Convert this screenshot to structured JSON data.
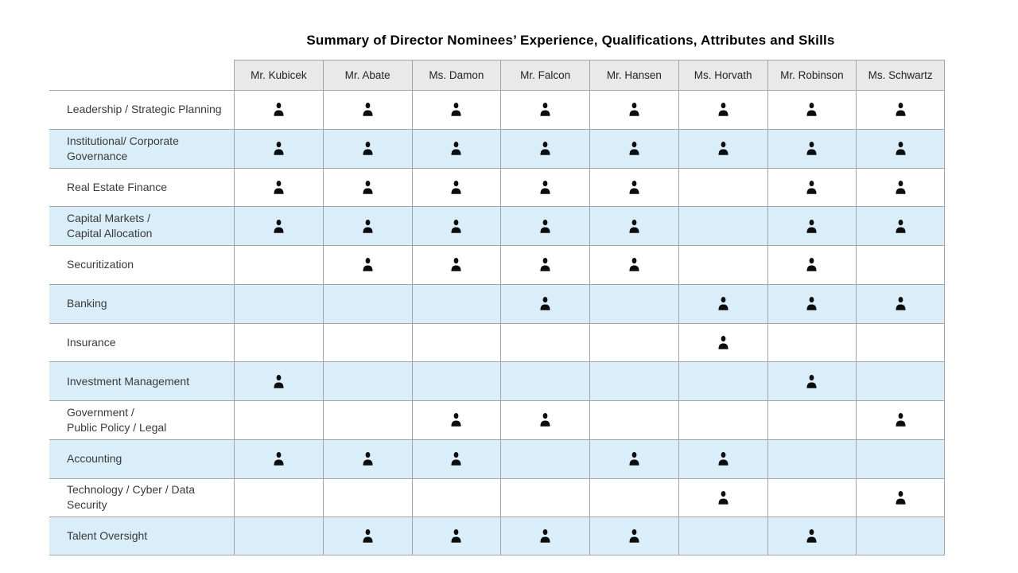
{
  "title": "Summary of Director Nominees’ Experience, Qualifications, Attributes and Skills",
  "colors": {
    "row_stripe": "#daeef9",
    "header_bg": "#e9e9e9",
    "grid_border": "#a5a5a5",
    "icon": "#0d0d0d",
    "label_text": "#3a3a3a"
  },
  "icon_name": "person-icon",
  "columns": [
    "Mr. Kubicek",
    "Mr. Abate",
    "Ms. Damon",
    "Mr. Falcon",
    "Mr. Hansen",
    "Ms. Horvath",
    "Mr. Robinson",
    "Ms. Schwartz"
  ],
  "rows": [
    {
      "label": "Leadership / Strategic Planning",
      "marks": [
        1,
        1,
        1,
        1,
        1,
        1,
        1,
        1
      ]
    },
    {
      "label": "Institutional/ Corporate\nGovernance",
      "marks": [
        1,
        1,
        1,
        1,
        1,
        1,
        1,
        1
      ]
    },
    {
      "label": "Real Estate Finance",
      "marks": [
        1,
        1,
        1,
        1,
        1,
        0,
        1,
        1
      ]
    },
    {
      "label": "Capital Markets /\nCapital Allocation",
      "marks": [
        1,
        1,
        1,
        1,
        1,
        0,
        1,
        1
      ]
    },
    {
      "label": "Securitization",
      "marks": [
        0,
        1,
        1,
        1,
        1,
        0,
        1,
        0
      ]
    },
    {
      "label": "Banking",
      "marks": [
        0,
        0,
        0,
        1,
        0,
        1,
        1,
        1
      ]
    },
    {
      "label": "Insurance",
      "marks": [
        0,
        0,
        0,
        0,
        0,
        1,
        0,
        0
      ]
    },
    {
      "label": "Investment Management",
      "marks": [
        1,
        0,
        0,
        0,
        0,
        0,
        1,
        0
      ]
    },
    {
      "label": "Government /\nPublic Policy / Legal",
      "marks": [
        0,
        0,
        1,
        1,
        0,
        0,
        0,
        1
      ]
    },
    {
      "label": "Accounting",
      "marks": [
        1,
        1,
        1,
        0,
        1,
        1,
        0,
        0
      ]
    },
    {
      "label": "Technology / Cyber / Data\nSecurity",
      "marks": [
        0,
        0,
        0,
        0,
        0,
        1,
        0,
        1
      ]
    },
    {
      "label": "Talent Oversight",
      "marks": [
        0,
        1,
        1,
        1,
        1,
        0,
        1,
        0
      ]
    }
  ]
}
